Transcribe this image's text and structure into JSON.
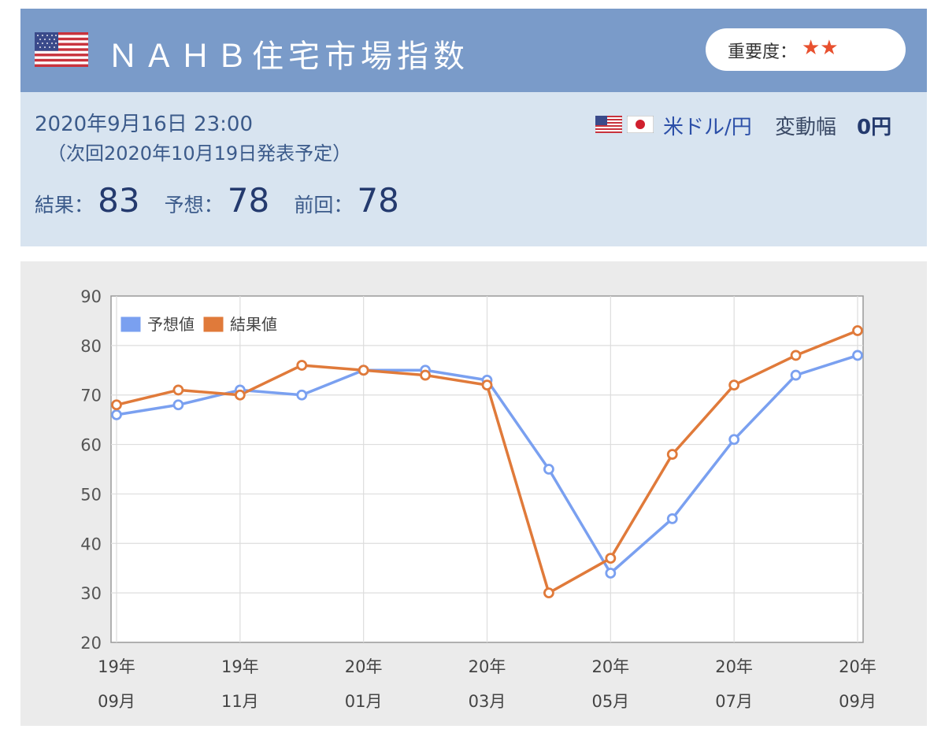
{
  "header": {
    "title": "ＮＡＨＢ住宅市場指数",
    "importance_label": "重要度：",
    "importance_stars": "★★",
    "flag_icon": "us-flag-icon"
  },
  "release": {
    "datetime": "2020年9月16日 23:00",
    "next_release": "（次回2020年10月19日発表予定）",
    "result_label": "結果：",
    "result_value": "83",
    "forecast_label": "予想：",
    "forecast_value": "78",
    "previous_label": "前回：",
    "previous_value": "78"
  },
  "currency": {
    "pair": "米ドル/円",
    "move_label": "変動幅",
    "move_value": "0円"
  },
  "colors": {
    "forecast": "#7aa0f0",
    "result": "#e07a3a",
    "header_bg": "#7a9bc9",
    "info_bg": "#d8e4f0"
  },
  "chart_data": {
    "type": "line",
    "x": [
      "2019-09",
      "2019-10",
      "2019-11",
      "2019-12",
      "2020-01",
      "2020-02",
      "2020-03",
      "2020-04",
      "2020-05",
      "2020-06",
      "2020-07",
      "2020-08",
      "2020-09"
    ],
    "tick_labels": [
      {
        "idx": 0,
        "year": "19年",
        "month": "09月"
      },
      {
        "idx": 2,
        "year": "19年",
        "month": "11月"
      },
      {
        "idx": 4,
        "year": "20年",
        "month": "01月"
      },
      {
        "idx": 6,
        "year": "20年",
        "month": "03月"
      },
      {
        "idx": 8,
        "year": "20年",
        "month": "05月"
      },
      {
        "idx": 10,
        "year": "20年",
        "month": "07月"
      },
      {
        "idx": 12,
        "year": "20年",
        "month": "09月"
      }
    ],
    "series": [
      {
        "name": "予想値",
        "color": "#7aa0f0",
        "values": [
          66,
          68,
          71,
          70,
          75,
          75,
          73,
          55,
          34,
          45,
          61,
          74,
          78
        ]
      },
      {
        "name": "結果値",
        "color": "#e07a3a",
        "values": [
          68,
          71,
          70,
          76,
          75,
          74,
          72,
          30,
          37,
          58,
          72,
          78,
          83
        ]
      }
    ],
    "ylim": [
      20,
      90
    ],
    "yticks": [
      20,
      30,
      40,
      50,
      60,
      70,
      80,
      90
    ],
    "grid": true,
    "legend_position": "top-left"
  }
}
